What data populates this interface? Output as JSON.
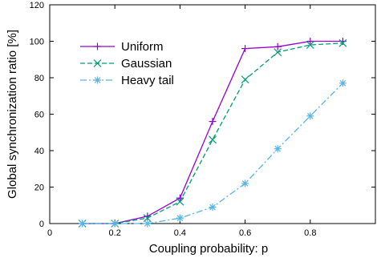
{
  "chart_data": {
    "type": "line",
    "title": "",
    "xlabel": "Coupling probability: p",
    "ylabel": "Global synchronization ratio [%]",
    "xlim": [
      0,
      1.0
    ],
    "ylim": [
      0,
      120
    ],
    "xticks": [
      0,
      0.2,
      0.4,
      0.6,
      0.8
    ],
    "yticks": [
      0,
      20,
      40,
      60,
      80,
      100,
      120
    ],
    "x_tick_labels": [
      "0",
      "0.2",
      "0.4",
      "0.6",
      "0.8"
    ],
    "y_tick_labels": [
      "0",
      "20",
      "40",
      "60",
      "80",
      "100",
      "120"
    ],
    "grid": false,
    "legend_position": "upper-left",
    "x": [
      0.1,
      0.2,
      0.3,
      0.4,
      0.5,
      0.6,
      0.7,
      0.8,
      0.9
    ],
    "series": [
      {
        "name": "Uniform",
        "color": "#9400d3",
        "dash": "solid",
        "marker": "plus",
        "values": [
          0,
          0,
          4,
          14,
          56,
          96,
          97,
          100,
          100
        ]
      },
      {
        "name": "Gaussian",
        "color": "#009e73",
        "dash": "dashed",
        "marker": "x",
        "values": [
          0,
          0,
          3,
          12,
          46,
          79,
          94,
          98,
          99
        ]
      },
      {
        "name": "Heavy tail",
        "color": "#56b4e9",
        "dash": "dashdot",
        "marker": "star",
        "values": [
          0,
          0,
          0,
          3,
          9,
          22,
          41,
          59,
          77
        ]
      }
    ]
  }
}
